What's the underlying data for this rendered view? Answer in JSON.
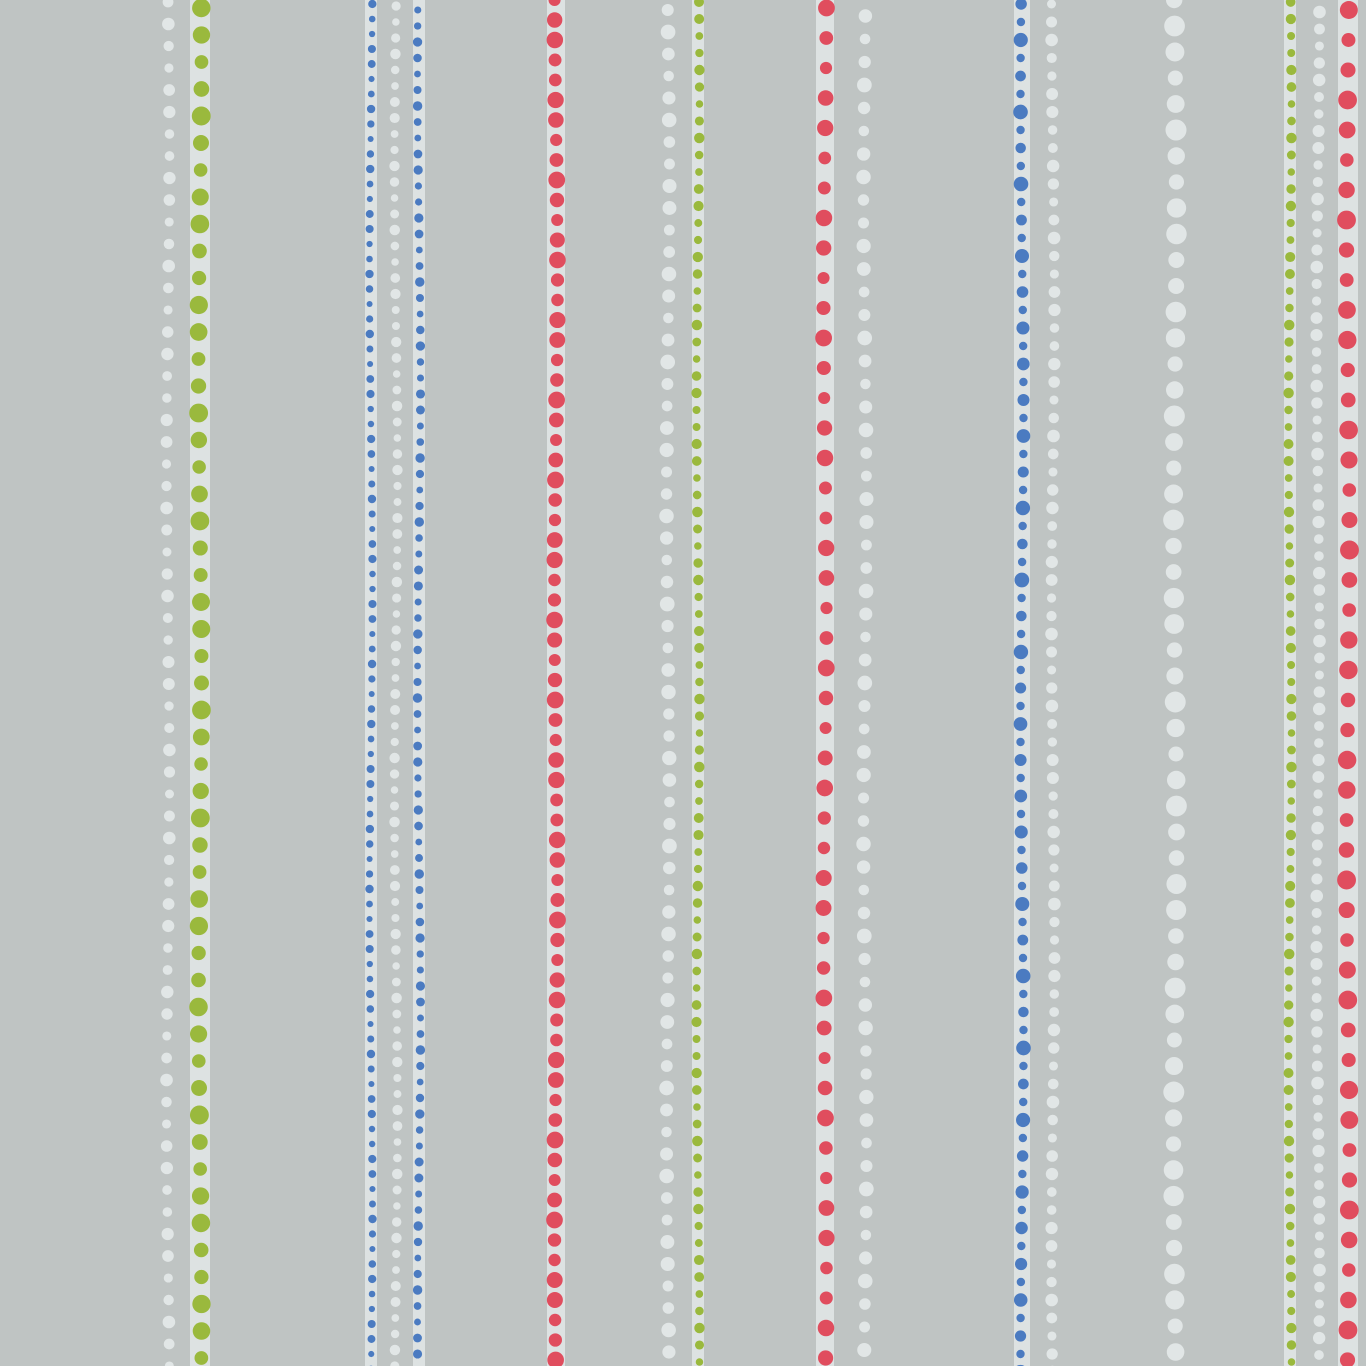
{
  "pattern": {
    "colors": {
      "background": "#bfc4c3",
      "strip": "#dde2e2",
      "white_dot": "#e1e6e6",
      "green": "#9ab93d",
      "blue": "#4b7bc1",
      "red": "#e04d5e"
    },
    "stripes": [
      {
        "dot_color": "white"
      },
      {
        "dot_color": "green"
      },
      {
        "dot_color": "blue"
      },
      {
        "dot_color": "white"
      },
      {
        "dot_color": "blue"
      },
      {
        "dot_color": "red"
      },
      {
        "dot_color": "white"
      },
      {
        "dot_color": "green"
      },
      {
        "dot_color": "red"
      },
      {
        "dot_color": "white"
      },
      {
        "dot_color": "blue"
      },
      {
        "dot_color": "white"
      },
      {
        "dot_color": "white"
      },
      {
        "dot_color": "green"
      },
      {
        "dot_color": "white"
      },
      {
        "dot_color": "red"
      }
    ]
  }
}
